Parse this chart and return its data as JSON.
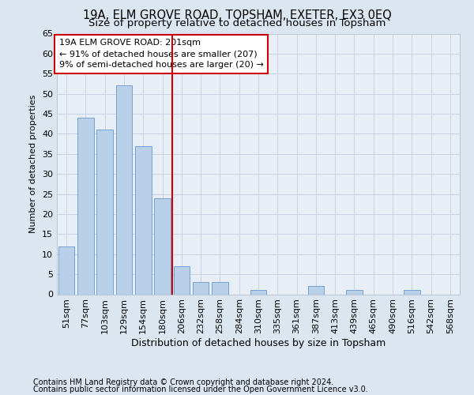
{
  "title": "19A, ELM GROVE ROAD, TOPSHAM, EXETER, EX3 0EQ",
  "subtitle": "Size of property relative to detached houses in Topsham",
  "xlabel": "Distribution of detached houses by size in Topsham",
  "ylabel": "Number of detached properties",
  "bar_labels": [
    "51sqm",
    "77sqm",
    "103sqm",
    "129sqm",
    "154sqm",
    "180sqm",
    "206sqm",
    "232sqm",
    "258sqm",
    "284sqm",
    "310sqm",
    "335sqm",
    "361sqm",
    "387sqm",
    "413sqm",
    "439sqm",
    "465sqm",
    "490sqm",
    "516sqm",
    "542sqm",
    "568sqm"
  ],
  "bar_values": [
    12,
    44,
    41,
    52,
    37,
    24,
    7,
    3,
    3,
    0,
    1,
    0,
    0,
    2,
    0,
    1,
    0,
    0,
    1,
    0,
    0
  ],
  "bar_color": "#b8d0e8",
  "bar_edge_color": "#6699cc",
  "vline_x_index": 6,
  "vline_color": "#cc0000",
  "annotation_title": "19A ELM GROVE ROAD: 201sqm",
  "annotation_line1": "← 91% of detached houses are smaller (207)",
  "annotation_line2": "9% of semi-detached houses are larger (20) →",
  "annotation_box_facecolor": "#ffffff",
  "annotation_box_edgecolor": "#cc0000",
  "ylim": [
    0,
    65
  ],
  "yticks": [
    0,
    5,
    10,
    15,
    20,
    25,
    30,
    35,
    40,
    45,
    50,
    55,
    60,
    65
  ],
  "footer1": "Contains HM Land Registry data © Crown copyright and database right 2024.",
  "footer2": "Contains public sector information licensed under the Open Government Licence v3.0.",
  "fig_bg_color": "#dce6f0",
  "plot_bg_color": "#e8eef6",
  "grid_color": "#c8d4e4",
  "title_fontsize": 10.5,
  "subtitle_fontsize": 9.5,
  "xlabel_fontsize": 9,
  "ylabel_fontsize": 8,
  "tick_fontsize": 8,
  "annot_fontsize": 8,
  "footer_fontsize": 7
}
